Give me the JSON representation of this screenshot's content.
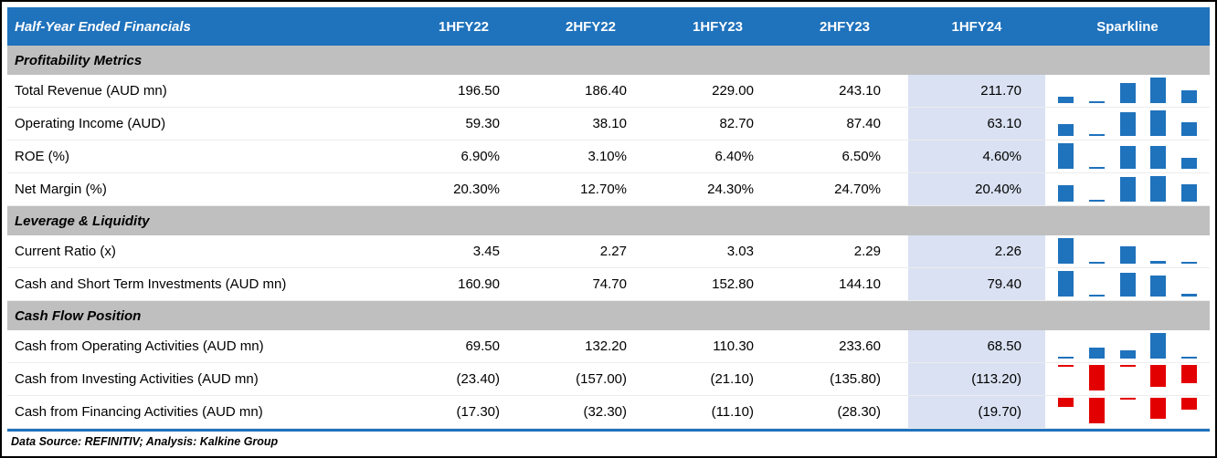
{
  "chart_data": {
    "type": "table",
    "title": "Half-Year Ended Financials",
    "columns": [
      "1HFY22",
      "2HFY22",
      "1HFY23",
      "2HFY23",
      "1HFY24"
    ],
    "sparkline_column": "Sparkline",
    "highlighted_column": "1HFY24",
    "sparkline_type": "bar",
    "sections": [
      {
        "label": "Profitability Metrics",
        "rows": [
          {
            "label": "Total Revenue (AUD mn)",
            "display": [
              "196.50",
              "186.40",
              "229.00",
              "243.10",
              "211.70"
            ],
            "values": [
              196.5,
              186.4,
              229.0,
              243.1,
              211.7
            ]
          },
          {
            "label": "Operating Income (AUD)",
            "display": [
              "59.30",
              "38.10",
              "82.70",
              "87.40",
              "63.10"
            ],
            "values": [
              59.3,
              38.1,
              82.7,
              87.4,
              63.1
            ]
          },
          {
            "label": "ROE (%)",
            "display": [
              "6.90%",
              "3.10%",
              "6.40%",
              "6.50%",
              "4.60%"
            ],
            "values": [
              6.9,
              3.1,
              6.4,
              6.5,
              4.6
            ]
          },
          {
            "label": "Net Margin (%)",
            "display": [
              "20.30%",
              "12.70%",
              "24.30%",
              "24.70%",
              "20.40%"
            ],
            "values": [
              20.3,
              12.7,
              24.3,
              24.7,
              20.4
            ]
          }
        ]
      },
      {
        "label": "Leverage & Liquidity",
        "rows": [
          {
            "label": "Current Ratio (x)",
            "display": [
              "3.45",
              "2.27",
              "3.03",
              "2.29",
              "2.26"
            ],
            "values": [
              3.45,
              2.27,
              3.03,
              2.29,
              2.26
            ]
          },
          {
            "label": "Cash and Short Term Investments (AUD mn)",
            "display": [
              "160.90",
              "74.70",
              "152.80",
              "144.10",
              "79.40"
            ],
            "values": [
              160.9,
              74.7,
              152.8,
              144.1,
              79.4
            ]
          }
        ]
      },
      {
        "label": "Cash Flow Position",
        "rows": [
          {
            "label": "Cash from Operating Activities (AUD mn)",
            "display": [
              "69.50",
              "132.20",
              "110.30",
              "233.60",
              "68.50"
            ],
            "values": [
              69.5,
              132.2,
              110.3,
              233.6,
              68.5
            ]
          },
          {
            "label": "Cash from Investing Activities (AUD mn)",
            "display": [
              "(23.40)",
              "(157.00)",
              "(21.10)",
              "(135.80)",
              "(113.20)"
            ],
            "values": [
              -23.4,
              -157.0,
              -21.1,
              -135.8,
              -113.2
            ]
          },
          {
            "label": "Cash from Financing Activities (AUD mn)",
            "display": [
              "(17.30)",
              "(32.30)",
              "(11.10)",
              "(28.30)",
              "(19.70)"
            ],
            "values": [
              -17.3,
              -32.3,
              -11.1,
              -28.3,
              -19.7
            ]
          }
        ]
      }
    ]
  },
  "footer": {
    "source_note": "Data Source: REFINITIV; Analysis: Kalkine Group"
  },
  "colors": {
    "header_bg": "#1F72BC",
    "section_bg": "#BFBFBF",
    "highlight_bg": "#D9E1F2",
    "spark_positive": "#1F72BC",
    "spark_negative": "#E30000",
    "row_line": "#ECECEC",
    "border": "#000000"
  }
}
